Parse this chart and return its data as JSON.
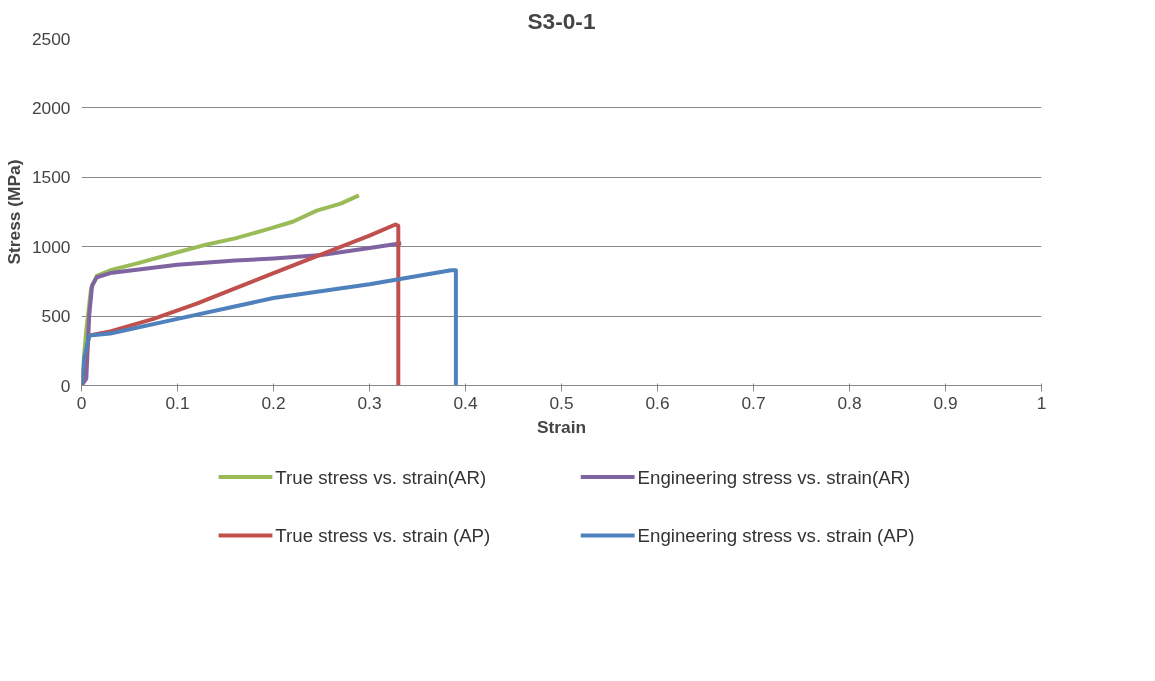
{
  "chart_data": {
    "type": "line",
    "title": "S3-0-1",
    "xlabel": "Strain",
    "ylabel": "Stress (MPa)",
    "xlim": [
      0,
      1
    ],
    "xticks": [
      0,
      0.1,
      0.2,
      0.3,
      0.4,
      0.5,
      0.6,
      0.7,
      0.8,
      0.9,
      1
    ],
    "ylim": [
      0,
      2500
    ],
    "yticks": [
      0,
      500,
      1000,
      1500,
      2000,
      2500
    ],
    "grid": "y",
    "legend": "bottom",
    "marker": "none",
    "line_style": "solid",
    "series": [
      {
        "name": "True stress vs. strain(AR)",
        "color": "#9bbb59",
        "x": [
          0,
          0.005,
          0.01,
          0.016,
          0.03,
          0.058,
          0.1,
          0.127,
          0.16,
          0.196,
          0.22,
          0.245,
          0.27,
          0.289
        ],
        "values": [
          0,
          400,
          700,
          790,
          830,
          880,
          960,
          1010,
          1060,
          1130,
          1180,
          1260,
          1310,
          1370
        ]
      },
      {
        "name": "Engineering stress vs. strain(AR)",
        "color": "#8064a2",
        "x": [
          0,
          0.005,
          0.008,
          0.011,
          0.016,
          0.03,
          0.1,
          0.16,
          0.2,
          0.25,
          0.3,
          0.333
        ],
        "values": [
          0,
          50,
          500,
          720,
          780,
          810,
          870,
          900,
          915,
          940,
          990,
          1025
        ]
      },
      {
        "name": "True stress vs. strain (AP)",
        "color": "#c0504d",
        "x": [
          0,
          0.004,
          0.008,
          0.03,
          0.075,
          0.12,
          0.16,
          0.2,
          0.248,
          0.3,
          0.327,
          0.33,
          0.33
        ],
        "values": [
          0,
          200,
          360,
          390,
          480,
          590,
          700,
          810,
          940,
          1080,
          1160,
          1150,
          0
        ]
      },
      {
        "name": "Engineering stress vs. strain (AP)",
        "color": "#4f81bd",
        "x": [
          0,
          0.003,
          0.008,
          0.03,
          0.1,
          0.2,
          0.3,
          0.385,
          0.39,
          0.39
        ],
        "values": [
          0,
          200,
          360,
          375,
          480,
          630,
          730,
          830,
          830,
          0
        ]
      }
    ]
  }
}
